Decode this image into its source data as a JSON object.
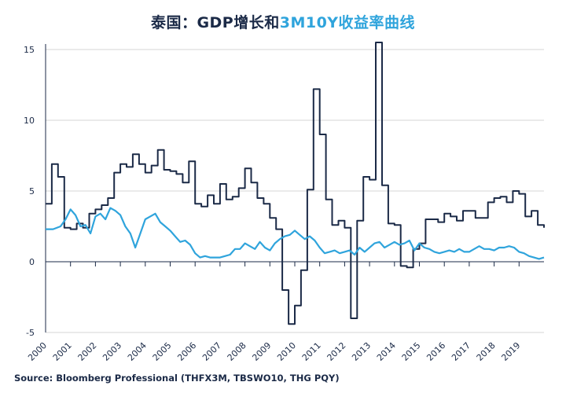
{
  "title": {
    "prefix": "泰国：GDP增长和",
    "accent": "3M10Y收益率曲线"
  },
  "source": "Source: Bloomberg Professional  (THFX3M, TBSWO10, THG PQY)",
  "colors": {
    "gdp": "#1b2a47",
    "curve": "#2fa4dc",
    "grid": "#d4d4d4",
    "axis": "#1b2a47"
  },
  "chart_data": {
    "type": "line",
    "title": "泰国：GDP增长和3M10Y收益率曲线",
    "xlim": [
      2000,
      2020
    ],
    "ylim": [
      -5,
      16
    ],
    "x_ticks": [
      "2000",
      "2001",
      "2002",
      "2003",
      "2004",
      "2005",
      "2006",
      "2007",
      "2008",
      "2009",
      "2010",
      "2011",
      "2012",
      "2013",
      "2014",
      "2015",
      "2016",
      "2017",
      "2018",
      "2019"
    ],
    "y_ticks": [
      "15",
      "10",
      "5",
      "0",
      "-5"
    ],
    "y_tick_values": [
      15,
      10,
      5,
      0,
      -5
    ],
    "grid": "horizontal",
    "series": [
      {
        "style": "step",
        "x": [
          2000.0,
          2000.25,
          2000.5,
          2000.75,
          2001.0,
          2001.25,
          2001.5,
          2001.75,
          2002.0,
          2002.25,
          2002.5,
          2002.75,
          2003.0,
          2003.25,
          2003.5,
          2003.75,
          2004.0,
          2004.25,
          2004.5,
          2004.75,
          2005.0,
          2005.25,
          2005.5,
          2005.75,
          2006.0,
          2006.25,
          2006.5,
          2006.75,
          2007.0,
          2007.25,
          2007.5,
          2007.75,
          2008.0,
          2008.25,
          2008.5,
          2008.75,
          2009.0,
          2009.25,
          2009.5,
          2009.75,
          2010.0,
          2010.25,
          2010.5,
          2010.75,
          2011.0,
          2011.25,
          2011.5,
          2011.75,
          2012.0,
          2012.25,
          2012.5,
          2012.75,
          2013.0,
          2013.25,
          2013.5,
          2013.75,
          2014.0,
          2014.25,
          2014.5,
          2014.75,
          2015.0,
          2015.25,
          2015.5,
          2015.75,
          2016.0,
          2016.25,
          2016.5,
          2016.75,
          2017.0,
          2017.25,
          2017.5,
          2017.75,
          2018.0,
          2018.25,
          2018.5,
          2018.75,
          2019.0,
          2019.25,
          2019.5,
          2019.75,
          2020.0
        ],
        "values": [
          4.1,
          6.9,
          6.0,
          2.4,
          2.3,
          2.7,
          2.4,
          3.4,
          3.7,
          4.0,
          4.5,
          6.3,
          6.9,
          6.7,
          7.6,
          6.9,
          6.3,
          6.8,
          7.9,
          6.5,
          6.4,
          6.2,
          5.6,
          7.1,
          4.1,
          3.9,
          4.7,
          4.1,
          5.5,
          4.4,
          4.6,
          5.2,
          6.6,
          5.6,
          4.5,
          4.1,
          3.1,
          2.3,
          -2.0,
          -4.4,
          -3.1,
          -0.6,
          5.1,
          12.2,
          9.0,
          4.4,
          2.6,
          2.9,
          2.4,
          -4.0,
          2.9,
          6.0,
          5.8,
          15.5,
          5.4,
          2.7,
          2.6,
          -0.3,
          -0.4,
          0.9,
          1.3,
          3.0,
          3.0,
          2.8,
          3.4,
          3.2,
          2.9,
          3.6,
          3.6,
          3.1,
          3.1,
          4.2,
          4.5,
          4.6,
          4.2,
          5.0,
          4.8,
          3.2,
          3.6,
          2.6,
          2.4
        ]
      },
      {
        "style": "line",
        "x": [
          2000.0,
          2000.3,
          2000.6,
          2000.8,
          2001.0,
          2001.2,
          2001.4,
          2001.6,
          2001.8,
          2002.0,
          2002.2,
          2002.4,
          2002.6,
          2002.8,
          2003.0,
          2003.2,
          2003.4,
          2003.6,
          2003.8,
          2004.0,
          2004.2,
          2004.4,
          2004.6,
          2004.8,
          2005.0,
          2005.2,
          2005.4,
          2005.6,
          2005.8,
          2006.0,
          2006.2,
          2006.4,
          2006.6,
          2006.8,
          2007.0,
          2007.2,
          2007.4,
          2007.6,
          2007.8,
          2008.0,
          2008.2,
          2008.4,
          2008.6,
          2008.8,
          2009.0,
          2009.2,
          2009.4,
          2009.6,
          2009.8,
          2010.0,
          2010.2,
          2010.4,
          2010.6,
          2010.8,
          2011.0,
          2011.2,
          2011.4,
          2011.6,
          2011.8,
          2012.0,
          2012.2,
          2012.4,
          2012.6,
          2012.8,
          2013.0,
          2013.2,
          2013.4,
          2013.6,
          2013.8,
          2014.0,
          2014.2,
          2014.4,
          2014.6,
          2014.8,
          2015.0,
          2015.2,
          2015.4,
          2015.6,
          2015.8,
          2016.0,
          2016.2,
          2016.4,
          2016.6,
          2016.8,
          2017.0,
          2017.2,
          2017.4,
          2017.6,
          2017.8,
          2018.0,
          2018.2,
          2018.4,
          2018.6,
          2018.8,
          2019.0,
          2019.2,
          2019.4,
          2019.6,
          2019.8,
          2020.0
        ],
        "values": [
          2.3,
          2.3,
          2.5,
          3.0,
          3.7,
          3.3,
          2.5,
          2.6,
          2.0,
          3.2,
          3.4,
          3.0,
          3.8,
          3.6,
          3.3,
          2.5,
          2.0,
          1.0,
          2.0,
          3.0,
          3.2,
          3.4,
          2.8,
          2.5,
          2.2,
          1.8,
          1.4,
          1.5,
          1.2,
          0.6,
          0.3,
          0.4,
          0.3,
          0.3,
          0.3,
          0.4,
          0.5,
          0.9,
          0.9,
          1.3,
          1.1,
          0.9,
          1.4,
          1.0,
          0.8,
          1.3,
          1.6,
          1.8,
          1.9,
          2.2,
          1.9,
          1.6,
          1.8,
          1.5,
          1.0,
          0.6,
          0.7,
          0.8,
          0.6,
          0.7,
          0.8,
          0.5,
          1.0,
          0.7,
          1.0,
          1.3,
          1.4,
          1.0,
          1.2,
          1.4,
          1.2,
          1.3,
          1.5,
          0.8,
          1.3,
          1.0,
          0.9,
          0.7,
          0.6,
          0.7,
          0.8,
          0.7,
          0.9,
          0.7,
          0.7,
          0.9,
          1.1,
          0.9,
          0.9,
          0.8,
          1.0,
          1.0,
          1.1,
          1.0,
          0.7,
          0.6,
          0.4,
          0.3,
          0.2,
          0.3
        ]
      }
    ]
  }
}
